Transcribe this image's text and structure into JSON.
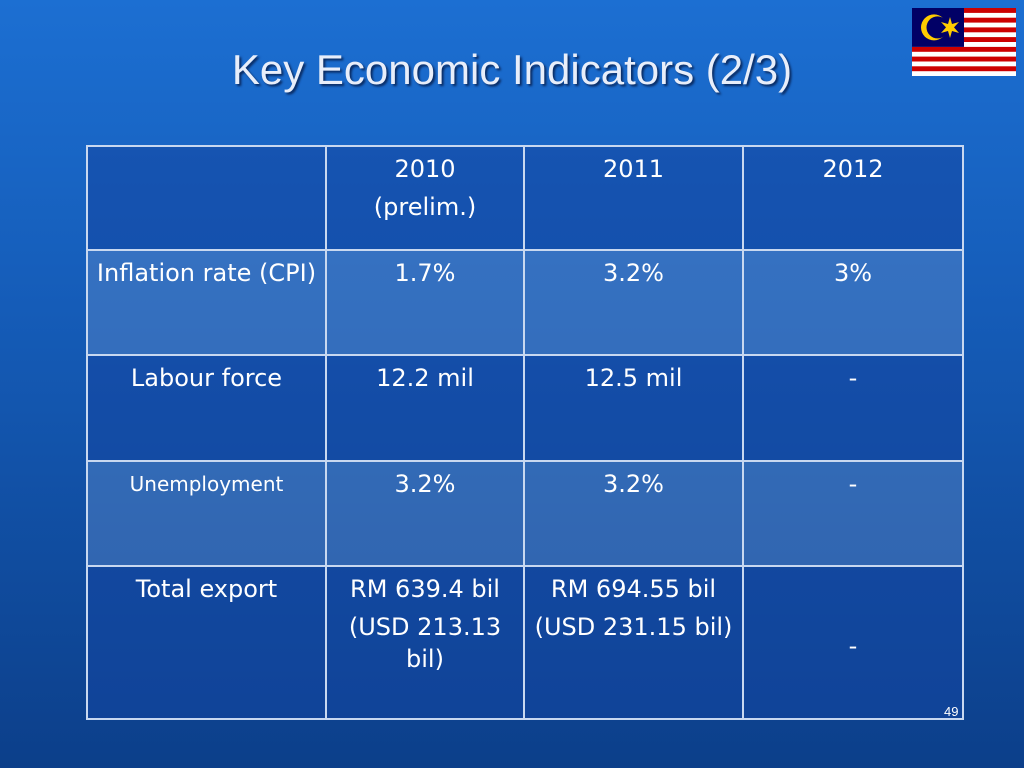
{
  "title": "Key Economic Indicators (2/3)",
  "table": {
    "columns": [
      [
        "2010",
        "(prelim.)"
      ],
      [
        "2011"
      ],
      [
        "2012"
      ]
    ],
    "rows": [
      [
        "Inflation rate (CPI)",
        "1.7%",
        "3.2%",
        "3%"
      ],
      [
        "Labour force",
        "12.2 mil",
        "12.5 mil",
        "-"
      ],
      [
        "Unemployment",
        "3.2%",
        "3.2%",
        "-"
      ],
      [
        "Total export",
        [
          "RM 639.4 bil",
          "(USD 213.13 bil)"
        ],
        [
          "RM 694.55 bil",
          "(USD 231.15 bil)"
        ],
        "-"
      ]
    ]
  },
  "page_number": "49"
}
